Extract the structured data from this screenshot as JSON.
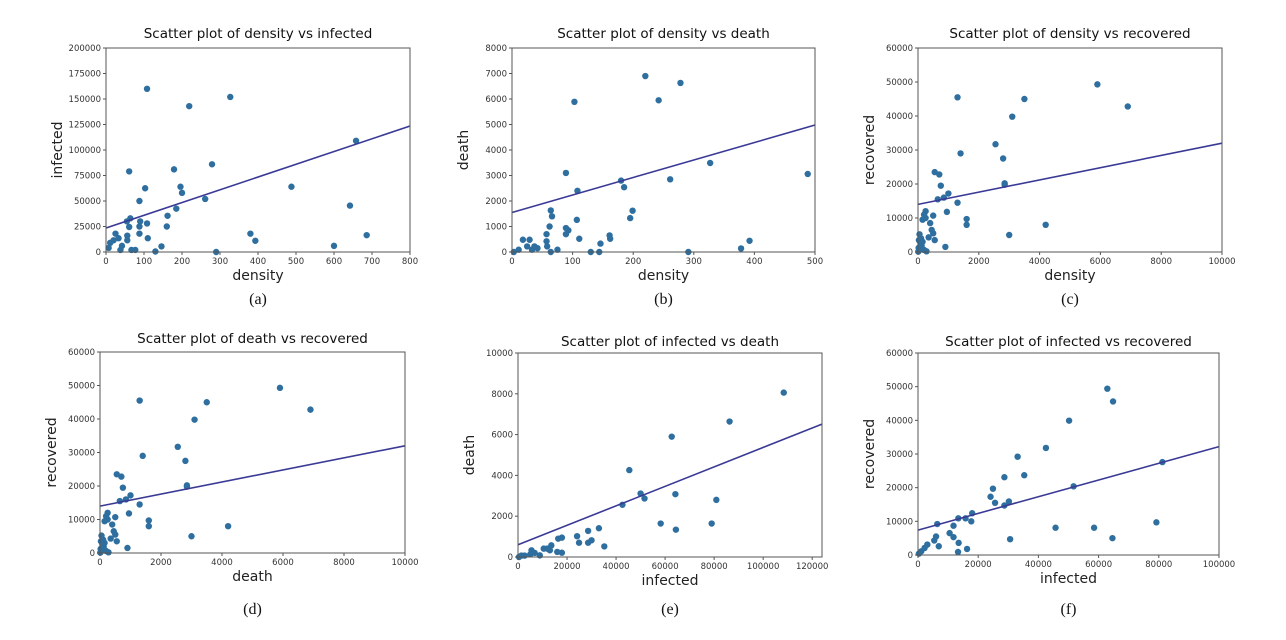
{
  "colors": {
    "points": "#2f6f9f",
    "fit_line": "#3a3a96",
    "axes": "#555555"
  },
  "chart_data": [
    {
      "type": "scatter",
      "caption": "(a)",
      "title": "Scatter plot of density vs infected",
      "xlabel": "density",
      "ylabel": "infected",
      "xlim": [
        0,
        800
      ],
      "ylim": [
        0,
        200000
      ],
      "xticks": [
        0,
        100,
        200,
        300,
        400,
        500,
        600,
        700,
        800
      ],
      "yticks": [
        0,
        25000,
        50000,
        75000,
        100000,
        125000,
        150000,
        175000,
        200000
      ],
      "fit_line": {
        "intercept": 23500,
        "slope": 125
      },
      "points": [
        [
          61,
          79000
        ],
        [
          108,
          160000
        ],
        [
          219,
          143000
        ],
        [
          327,
          152000
        ],
        [
          279,
          86000
        ],
        [
          179,
          81000
        ],
        [
          196,
          64000
        ],
        [
          200,
          58000
        ],
        [
          103,
          62500
        ],
        [
          88,
          50000
        ],
        [
          185,
          42500
        ],
        [
          261,
          52000
        ],
        [
          162,
          35500
        ],
        [
          160,
          25000
        ],
        [
          108,
          28000
        ],
        [
          90,
          30000
        ],
        [
          88,
          25000
        ],
        [
          88,
          18000
        ],
        [
          110,
          13500
        ],
        [
          64,
          33000
        ],
        [
          55,
          30000
        ],
        [
          61,
          24500
        ],
        [
          56,
          16000
        ],
        [
          56,
          11500
        ],
        [
          25,
          18000
        ],
        [
          33,
          13500
        ],
        [
          11,
          9000
        ],
        [
          20,
          11500
        ],
        [
          7,
          4000
        ],
        [
          42,
          6000
        ],
        [
          38,
          2000
        ],
        [
          67,
          2000
        ],
        [
          77,
          2000
        ],
        [
          130,
          500
        ],
        [
          146,
          5500
        ],
        [
          290,
          0
        ],
        [
          380,
          18000
        ],
        [
          393,
          11000
        ],
        [
          488,
          64000
        ],
        [
          658,
          109000
        ],
        [
          642,
          45500
        ],
        [
          600,
          6000
        ],
        [
          686,
          16500
        ]
      ]
    },
    {
      "type": "scatter",
      "caption": "(b)",
      "title": "Scatter plot of density vs death",
      "xlabel": "density",
      "ylabel": "death",
      "xlim": [
        0,
        500
      ],
      "ylim": [
        0,
        8000
      ],
      "xticks": [
        0,
        100,
        200,
        300,
        400,
        500
      ],
      "yticks": [
        0,
        1000,
        2000,
        3000,
        4000,
        5000,
        6000,
        7000,
        8000
      ],
      "fit_line": {
        "intercept": 1550,
        "slope": 6.86
      },
      "points": [
        [
          220,
          6900
        ],
        [
          278,
          6630
        ],
        [
          242,
          5950
        ],
        [
          103,
          5890
        ],
        [
          89,
          3100
        ],
        [
          327,
          3490
        ],
        [
          488,
          3060
        ],
        [
          261,
          2850
        ],
        [
          180,
          2800
        ],
        [
          185,
          2540
        ],
        [
          108,
          2400
        ],
        [
          199,
          1620
        ],
        [
          195,
          1330
        ],
        [
          64,
          1630
        ],
        [
          66,
          1400
        ],
        [
          62,
          1000
        ],
        [
          107,
          1260
        ],
        [
          57,
          700
        ],
        [
          89,
          940
        ],
        [
          93,
          850
        ],
        [
          89,
          700
        ],
        [
          111,
          520
        ],
        [
          57,
          420
        ],
        [
          58,
          220
        ],
        [
          161,
          650
        ],
        [
          162,
          520
        ],
        [
          146,
          330
        ],
        [
          130,
          0
        ],
        [
          144,
          0
        ],
        [
          75,
          90
        ],
        [
          64,
          0
        ],
        [
          18,
          480
        ],
        [
          29,
          480
        ],
        [
          25,
          220
        ],
        [
          37,
          220
        ],
        [
          42,
          150
        ],
        [
          11,
          90
        ],
        [
          3,
          0
        ],
        [
          33,
          90
        ],
        [
          291,
          0
        ],
        [
          378,
          140
        ],
        [
          392,
          440
        ]
      ]
    },
    {
      "type": "scatter",
      "caption": "(c)",
      "title": "Scatter plot of density vs recovered",
      "xlabel": "density",
      "ylabel": "recovered",
      "xlim": [
        0,
        10000
      ],
      "ylim": [
        0,
        60000
      ],
      "xticks": [
        0,
        2000,
        4000,
        6000,
        8000,
        10000
      ],
      "yticks": [
        0,
        10000,
        20000,
        30000,
        40000,
        50000,
        60000
      ],
      "fit_line": {
        "intercept": 14000,
        "slope": 1.8
      },
      "points": [
        [
          5900,
          49300
        ],
        [
          6900,
          42800
        ],
        [
          1300,
          45500
        ],
        [
          3500,
          45000
        ],
        [
          3100,
          39800
        ],
        [
          2550,
          31700
        ],
        [
          1400,
          29000
        ],
        [
          2800,
          27500
        ],
        [
          2850,
          20200
        ],
        [
          2850,
          19800
        ],
        [
          550,
          23500
        ],
        [
          700,
          22800
        ],
        [
          750,
          19500
        ],
        [
          650,
          15500
        ],
        [
          850,
          16000
        ],
        [
          1000,
          17200
        ],
        [
          1300,
          14500
        ],
        [
          950,
          11800
        ],
        [
          1600,
          9700
        ],
        [
          1600,
          8000
        ],
        [
          4200,
          8000
        ],
        [
          3000,
          5000
        ],
        [
          900,
          1500
        ],
        [
          500,
          10700
        ],
        [
          400,
          8500
        ],
        [
          450,
          6500
        ],
        [
          500,
          5500
        ],
        [
          550,
          3500
        ],
        [
          350,
          4300
        ],
        [
          250,
          12000
        ],
        [
          200,
          11000
        ],
        [
          150,
          9500
        ],
        [
          250,
          10000
        ],
        [
          50,
          5200
        ],
        [
          30,
          3500
        ],
        [
          80,
          2500
        ],
        [
          120,
          1800
        ],
        [
          60,
          800
        ],
        [
          200,
          600
        ],
        [
          280,
          200
        ],
        [
          10,
          100
        ],
        [
          150,
          3000
        ],
        [
          100,
          4000
        ],
        [
          20,
          1200
        ]
      ]
    },
    {
      "type": "scatter",
      "caption": "(d)",
      "title": "Scatter plot of death vs recovered",
      "xlabel": "death",
      "ylabel": "recovered",
      "xlim": [
        0,
        10000
      ],
      "ylim": [
        0,
        60000
      ],
      "xticks": [
        0,
        2000,
        4000,
        6000,
        8000,
        10000
      ],
      "yticks": [
        0,
        10000,
        20000,
        30000,
        40000,
        50000,
        60000
      ],
      "fit_line": {
        "intercept": 14000,
        "slope": 1.8
      },
      "points": [
        [
          5900,
          49300
        ],
        [
          6900,
          42800
        ],
        [
          1300,
          45500
        ],
        [
          3500,
          45000
        ],
        [
          3100,
          39800
        ],
        [
          2550,
          31700
        ],
        [
          1400,
          29000
        ],
        [
          2800,
          27500
        ],
        [
          2850,
          20200
        ],
        [
          2850,
          19800
        ],
        [
          550,
          23500
        ],
        [
          700,
          22800
        ],
        [
          750,
          19500
        ],
        [
          650,
          15500
        ],
        [
          850,
          16000
        ],
        [
          1000,
          17200
        ],
        [
          1300,
          14500
        ],
        [
          950,
          11800
        ],
        [
          1600,
          9700
        ],
        [
          1600,
          8000
        ],
        [
          4200,
          8000
        ],
        [
          3000,
          5000
        ],
        [
          900,
          1500
        ],
        [
          500,
          10700
        ],
        [
          400,
          8500
        ],
        [
          450,
          6500
        ],
        [
          500,
          5500
        ],
        [
          550,
          3500
        ],
        [
          350,
          4300
        ],
        [
          250,
          12000
        ],
        [
          200,
          11000
        ],
        [
          150,
          9500
        ],
        [
          250,
          10000
        ],
        [
          50,
          5200
        ],
        [
          30,
          3500
        ],
        [
          80,
          2500
        ],
        [
          120,
          1800
        ],
        [
          60,
          800
        ],
        [
          200,
          600
        ],
        [
          280,
          200
        ],
        [
          10,
          100
        ],
        [
          150,
          3000
        ],
        [
          100,
          4000
        ],
        [
          20,
          1200
        ]
      ]
    },
    {
      "type": "scatter",
      "caption": "(e)",
      "title": "Scatter plot of infected vs death",
      "xlabel": "infected",
      "ylabel": "death",
      "xlim": [
        0,
        124000
      ],
      "ylim": [
        0,
        10000
      ],
      "xticks": [
        0,
        20000,
        40000,
        60000,
        80000,
        100000,
        120000
      ],
      "yticks": [
        0,
        2000,
        4000,
        6000,
        8000,
        10000
      ],
      "fit_line": {
        "intercept": 600,
        "slope": 0.0477
      },
      "points": [
        [
          108400,
          8060
        ],
        [
          86300,
          6640
        ],
        [
          62700,
          5900
        ],
        [
          45400,
          4260
        ],
        [
          50000,
          3110
        ],
        [
          51600,
          2870
        ],
        [
          64200,
          3080
        ],
        [
          80900,
          2800
        ],
        [
          42600,
          2560
        ],
        [
          58200,
          1640
        ],
        [
          79000,
          1640
        ],
        [
          64400,
          1340
        ],
        [
          33000,
          1410
        ],
        [
          28600,
          1280
        ],
        [
          30000,
          820
        ],
        [
          28600,
          700
        ],
        [
          35200,
          520
        ],
        [
          24100,
          1020
        ],
        [
          24900,
          700
        ],
        [
          17900,
          950
        ],
        [
          16400,
          900
        ],
        [
          17900,
          210
        ],
        [
          16000,
          250
        ],
        [
          13600,
          570
        ],
        [
          11900,
          410
        ],
        [
          10500,
          410
        ],
        [
          13000,
          330
        ],
        [
          5500,
          330
        ],
        [
          6800,
          200
        ],
        [
          5000,
          130
        ],
        [
          2700,
          70
        ],
        [
          1400,
          70
        ],
        [
          400,
          0
        ],
        [
          8900,
          80
        ]
      ]
    },
    {
      "type": "scatter",
      "caption": "(f)",
      "title": "Scatter plot of infected vs recovered",
      "xlabel": "infected",
      "ylabel": "recovered",
      "xlim": [
        0,
        100000
      ],
      "ylim": [
        0,
        60000
      ],
      "xticks": [
        0,
        20000,
        40000,
        60000,
        80000,
        100000
      ],
      "yticks": [
        0,
        10000,
        20000,
        30000,
        40000,
        50000,
        60000
      ],
      "fit_line": {
        "intercept": 7400,
        "slope": 0.248
      },
      "points": [
        [
          62900,
          49400
        ],
        [
          64800,
          45600
        ],
        [
          50200,
          39900
        ],
        [
          42500,
          31800
        ],
        [
          33100,
          29200
        ],
        [
          35300,
          23700
        ],
        [
          28700,
          23100
        ],
        [
          24900,
          19700
        ],
        [
          24100,
          17300
        ],
        [
          25600,
          15500
        ],
        [
          28700,
          14700
        ],
        [
          30200,
          15900
        ],
        [
          81200,
          27600
        ],
        [
          51700,
          20400
        ],
        [
          18000,
          12400
        ],
        [
          17700,
          10000
        ],
        [
          15800,
          10900
        ],
        [
          13400,
          10900
        ],
        [
          6400,
          9200
        ],
        [
          11800,
          8700
        ],
        [
          10500,
          6500
        ],
        [
          11800,
          5300
        ],
        [
          6000,
          5500
        ],
        [
          5400,
          4300
        ],
        [
          6900,
          2600
        ],
        [
          13500,
          3600
        ],
        [
          13300,
          900
        ],
        [
          16300,
          1800
        ],
        [
          30600,
          4700
        ],
        [
          45700,
          8100
        ],
        [
          58500,
          8100
        ],
        [
          64600,
          5000
        ],
        [
          79200,
          9700
        ],
        [
          3100,
          3100
        ],
        [
          2200,
          2100
        ],
        [
          1100,
          1100
        ],
        [
          300,
          400
        ]
      ]
    }
  ]
}
